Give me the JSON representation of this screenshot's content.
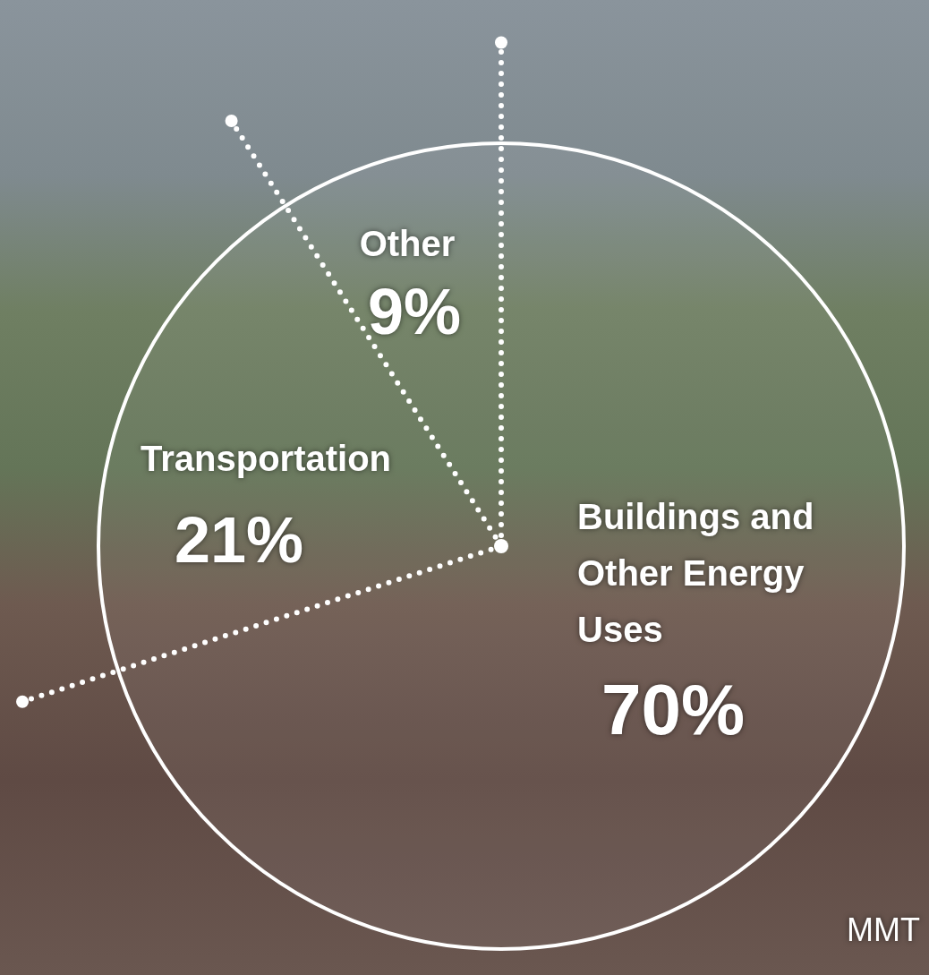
{
  "chart_data": {
    "type": "pie",
    "categories": [
      "Buildings and Other Energy Uses",
      "Transportation",
      "Other"
    ],
    "values": [
      70,
      21,
      9
    ],
    "value_labels": [
      "70%",
      "21%",
      "9%"
    ],
    "data_labels": true,
    "annotations": [
      "MMT"
    ]
  }
}
